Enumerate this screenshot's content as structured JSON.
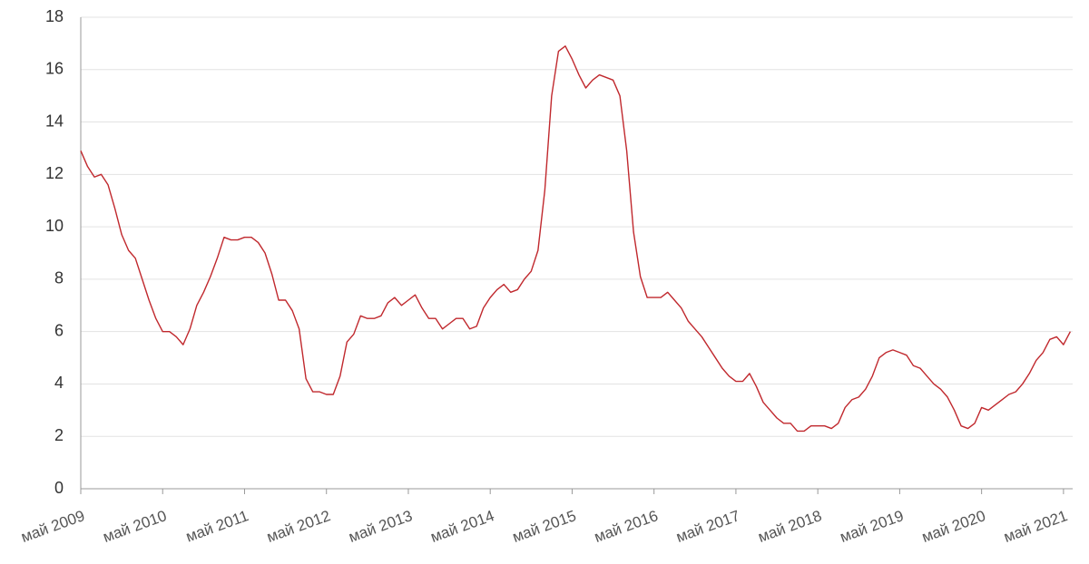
{
  "chart_data": {
    "type": "line",
    "categories": [
      "май 2009",
      null,
      null,
      null,
      null,
      null,
      null,
      null,
      null,
      null,
      null,
      null,
      "май 2010",
      null,
      null,
      null,
      null,
      null,
      null,
      null,
      null,
      null,
      null,
      null,
      "май 2011",
      null,
      null,
      null,
      null,
      null,
      null,
      null,
      null,
      null,
      null,
      null,
      "май 2012",
      null,
      null,
      null,
      null,
      null,
      null,
      null,
      null,
      null,
      null,
      null,
      "май 2013",
      null,
      null,
      null,
      null,
      null,
      null,
      null,
      null,
      null,
      null,
      null,
      "май 2014",
      null,
      null,
      null,
      null,
      null,
      null,
      null,
      null,
      null,
      null,
      null,
      "май 2015",
      null,
      null,
      null,
      null,
      null,
      null,
      null,
      null,
      null,
      null,
      null,
      "май 2016",
      null,
      null,
      null,
      null,
      null,
      null,
      null,
      null,
      null,
      null,
      null,
      "май 2017",
      null,
      null,
      null,
      null,
      null,
      null,
      null,
      null,
      null,
      null,
      null,
      "май 2018",
      null,
      null,
      null,
      null,
      null,
      null,
      null,
      null,
      null,
      null,
      null,
      "май 2019",
      null,
      null,
      null,
      null,
      null,
      null,
      null,
      null,
      null,
      null,
      null,
      "май 2020",
      null,
      null,
      null,
      null,
      null,
      null,
      null,
      null,
      null,
      null,
      null,
      "май 2021",
      null
    ],
    "values": [
      12.9,
      12.3,
      11.9,
      12.0,
      11.6,
      10.7,
      9.7,
      9.1,
      8.8,
      8.0,
      7.2,
      6.5,
      6.0,
      6.0,
      5.8,
      5.5,
      6.1,
      7.0,
      7.5,
      8.1,
      8.8,
      9.6,
      9.5,
      9.5,
      9.6,
      9.6,
      9.4,
      9.0,
      8.2,
      7.2,
      7.2,
      6.8,
      6.1,
      4.2,
      3.7,
      3.7,
      3.6,
      3.6,
      4.3,
      5.6,
      5.9,
      6.6,
      6.5,
      6.5,
      6.6,
      7.1,
      7.3,
      7.0,
      7.2,
      7.4,
      6.9,
      6.5,
      6.5,
      6.1,
      6.3,
      6.5,
      6.5,
      6.1,
      6.2,
      6.9,
      7.3,
      7.6,
      7.8,
      7.5,
      7.6,
      8.0,
      8.3,
      9.1,
      11.4,
      15.0,
      16.7,
      16.9,
      16.4,
      15.8,
      15.3,
      15.6,
      15.8,
      15.7,
      15.6,
      15.0,
      12.9,
      9.8,
      8.1,
      7.3,
      7.3,
      7.3,
      7.5,
      7.2,
      6.9,
      6.4,
      6.1,
      5.8,
      5.4,
      5.0,
      4.6,
      4.3,
      4.1,
      4.1,
      4.4,
      3.9,
      3.3,
      3.0,
      2.7,
      2.5,
      2.5,
      2.2,
      2.2,
      2.4,
      2.4,
      2.4,
      2.3,
      2.5,
      3.1,
      3.4,
      3.5,
      3.8,
      4.3,
      5.0,
      5.2,
      5.3,
      5.2,
      5.1,
      4.7,
      4.6,
      4.3,
      4.0,
      3.8,
      3.5,
      3.0,
      2.4,
      2.3,
      2.5,
      3.1,
      3.0,
      3.2,
      3.4,
      3.6,
      3.7,
      4.0,
      4.4,
      4.9,
      5.2,
      5.7,
      5.8,
      5.5,
      6.0
    ],
    "color": "#c0282d",
    "ylim": [
      0,
      18
    ],
    "yticks": [
      0,
      2,
      4,
      6,
      8,
      10,
      12,
      14,
      16,
      18
    ],
    "grid": true
  }
}
